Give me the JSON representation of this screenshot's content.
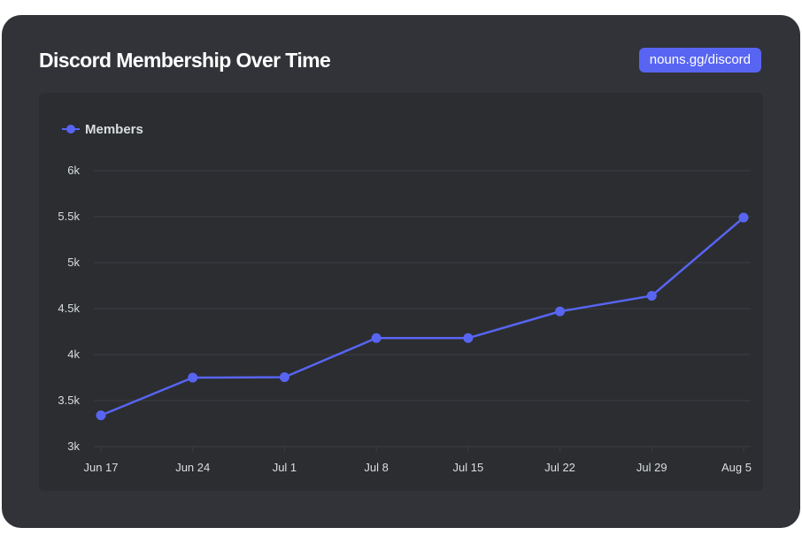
{
  "header": {
    "title": "Discord Membership Over Time",
    "link_label": "nouns.gg/discord"
  },
  "colors": {
    "series": "#5865f2",
    "grid": "#3b3d44",
    "text": "#dbdee1",
    "panel": "#2b2d31",
    "card": "#313338"
  },
  "chart_data": {
    "type": "line",
    "title": "Discord Membership Over Time",
    "xlabel": "",
    "ylabel": "",
    "legend_position": "top-left",
    "grid": true,
    "categories": [
      "Jun 17",
      "Jun 24",
      "Jul 1",
      "Jul 8",
      "Jul 15",
      "Jul 22",
      "Jul 29",
      "Aug 5"
    ],
    "series": [
      {
        "name": "Members",
        "values": [
          3340,
          3750,
          3755,
          4180,
          4180,
          4470,
          4640,
          5490
        ]
      }
    ],
    "ylim": [
      3000,
      6000
    ],
    "yticks": [
      3000,
      3500,
      4000,
      4500,
      5000,
      5500,
      6000
    ],
    "ytick_labels": [
      "3k",
      "3.5k",
      "4k",
      "4.5k",
      "5k",
      "5.5k",
      "6k"
    ]
  }
}
